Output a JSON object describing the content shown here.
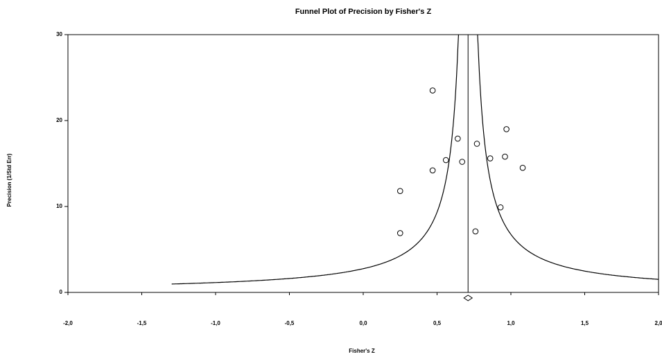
{
  "chart_data": {
    "type": "funnel",
    "title": "Funnel Plot of Precision by Fisher's Z",
    "x_label": "Fisher's Z",
    "y_label": "Precision (1/Std Err)",
    "x": [
      0.25,
      0.25,
      0.47,
      0.47,
      0.56,
      0.64,
      0.67,
      0.76,
      0.77,
      0.86,
      0.93,
      0.97,
      0.96,
      1.08
    ],
    "values": [
      11.8,
      6.9,
      23.5,
      14.2,
      15.4,
      17.9,
      15.2,
      7.1,
      17.3,
      15.6,
      9.9,
      19.0,
      15.8,
      14.5
    ],
    "summary": 0.71,
    "xlim": [
      -2,
      2
    ],
    "xticks": [
      {
        "value": -2,
        "label": "-2,0"
      },
      {
        "value": -1.5,
        "label": "-1,5"
      },
      {
        "value": -1,
        "label": "-1,0"
      },
      {
        "value": -0.5,
        "label": "-0,5"
      },
      {
        "value": 0,
        "label": "0,0"
      },
      {
        "value": 0.5,
        "label": "0,5"
      },
      {
        "value": 1,
        "label": "1,0"
      },
      {
        "value": 1.5,
        "label": "1,5"
      },
      {
        "value": 2,
        "label": "2,0"
      }
    ],
    "ylim": [
      0,
      30
    ],
    "yticks": [
      0,
      10,
      20,
      30
    ],
    "color": "#000000"
  }
}
